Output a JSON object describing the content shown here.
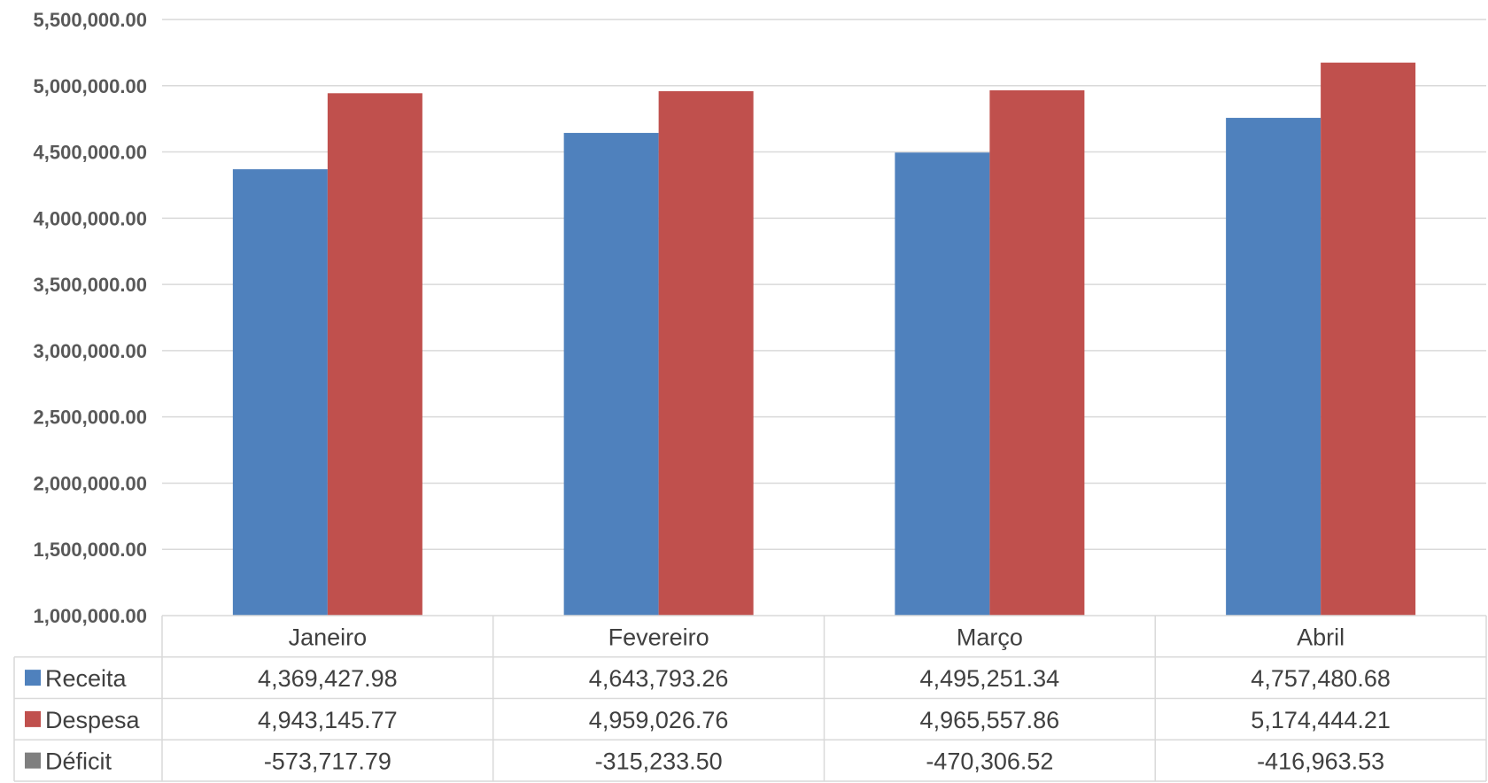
{
  "colors": {
    "receita": "#4f81bd",
    "despesa": "#c0504d",
    "deficit": "#7f7f7f",
    "grid": "#d9d9d9",
    "text": "#404040",
    "axis_text": "#595959"
  },
  "chart_data": {
    "type": "bar",
    "categories": [
      "Janeiro",
      "Fevereiro",
      "Março",
      "Abril"
    ],
    "ylim": [
      1000000,
      5500000
    ],
    "yticks": [
      "1,000,000.00",
      "1,500,000.00",
      "2,000,000.00",
      "2,500,000.00",
      "3,000,000.00",
      "3,500,000.00",
      "4,000,000.00",
      "4,500,000.00",
      "5,000,000.00",
      "5,500,000.00"
    ],
    "grid": true,
    "legend": "data-table",
    "series": [
      {
        "name": "Receita",
        "values": [
          4369427.98,
          4643793.26,
          4495251.34,
          4757480.68
        ],
        "labels": [
          "4,369,427.98",
          "4,643,793.26",
          "4,495,251.34",
          "4,757,480.68"
        ],
        "plotted": true
      },
      {
        "name": "Despesa",
        "values": [
          4943145.77,
          4959026.76,
          4965557.86,
          5174444.21
        ],
        "labels": [
          "4,943,145.77",
          "4,959,026.76",
          "4,965,557.86",
          "5,174,444.21"
        ],
        "plotted": true
      },
      {
        "name": "Déficit",
        "values": [
          -573717.79,
          -315233.5,
          -470306.52,
          -416963.53
        ],
        "labels": [
          "-573,717.79",
          "-315,233.50",
          "-470,306.52",
          "-416,963.53"
        ],
        "plotted": false
      }
    ]
  }
}
